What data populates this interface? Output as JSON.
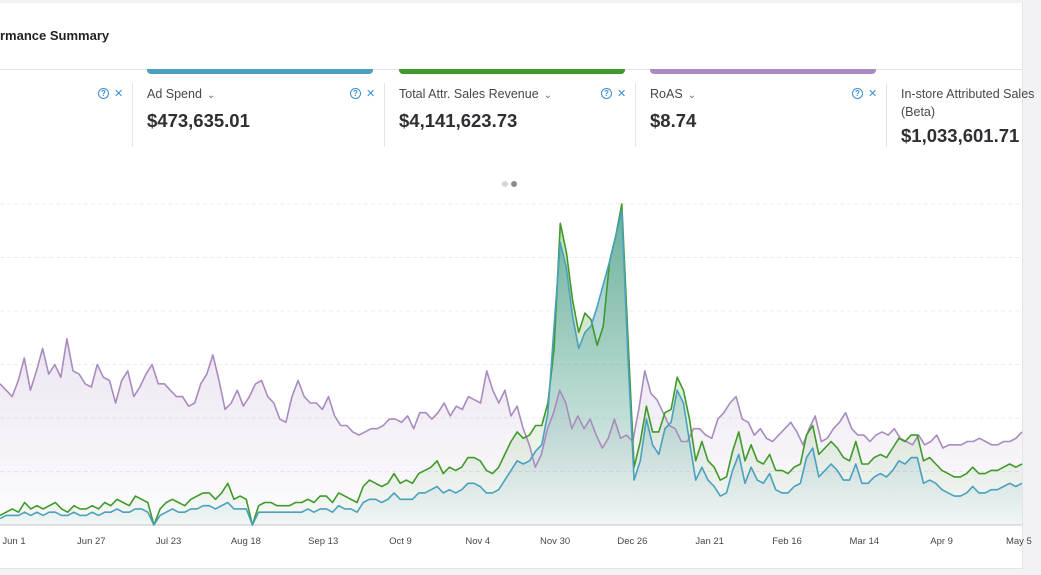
{
  "header": {
    "title": "rmance Summary"
  },
  "colors": {
    "teal": "#4aa0bd",
    "green": "#3f9a2a",
    "purple": "#a98bbf",
    "accent_blue": "#3a8fd6",
    "dot_inactive": "#d5d6da",
    "dot_active": "#8a8b90"
  },
  "metrics": [
    {
      "label": "",
      "value": "",
      "accent": "",
      "help": "?",
      "close": "✕"
    },
    {
      "label": "Ad Spend",
      "value": "$473,635.01",
      "accent": "#4aa0bd",
      "help": "?",
      "close": "✕"
    },
    {
      "label": "Total Attr. Sales Revenue",
      "value": "$4,141,623.73",
      "accent": "#3f9a2a",
      "help": "?",
      "close": "✕"
    },
    {
      "label": "RoAS",
      "value": "$8.74",
      "accent": "#a98bbf",
      "help": "?",
      "close": "✕"
    },
    {
      "label": "In-store Attributed Sales (Beta)",
      "value": "$1,033,601.71"
    }
  ],
  "chevron": "⌄",
  "pagination": {
    "total": 2,
    "active_index": 1
  },
  "chart_data": {
    "type": "area",
    "x_tick_labels": [
      "Jun 1",
      "Jun 27",
      "Jul 23",
      "Aug 18",
      "Sep 13",
      "Oct 9",
      "Nov 4",
      "Nov 30",
      "Dec 26",
      "Jan 21",
      "Feb 16",
      "Mar 14",
      "Apr 9",
      "May 5"
    ],
    "series": [
      {
        "name": "RoAS",
        "color": "#a98bbf",
        "values": [
          0.44,
          0.42,
          0.4,
          0.45,
          0.52,
          0.42,
          0.48,
          0.55,
          0.47,
          0.5,
          0.46,
          0.58,
          0.48,
          0.47,
          0.44,
          0.43,
          0.5,
          0.46,
          0.45,
          0.38,
          0.45,
          0.48,
          0.4,
          0.43,
          0.47,
          0.5,
          0.44,
          0.44,
          0.42,
          0.4,
          0.4,
          0.37,
          0.38,
          0.44,
          0.47,
          0.53,
          0.45,
          0.36,
          0.38,
          0.42,
          0.37,
          0.4,
          0.44,
          0.45,
          0.4,
          0.38,
          0.33,
          0.32,
          0.4,
          0.45,
          0.4,
          0.38,
          0.38,
          0.36,
          0.4,
          0.34,
          0.31,
          0.31,
          0.29,
          0.28,
          0.29,
          0.3,
          0.3,
          0.31,
          0.33,
          0.33,
          0.32,
          0.34,
          0.3,
          0.35,
          0.35,
          0.33,
          0.35,
          0.38,
          0.34,
          0.37,
          0.36,
          0.4,
          0.39,
          0.38,
          0.48,
          0.42,
          0.38,
          0.42,
          0.34,
          0.37,
          0.3,
          0.25,
          0.18,
          0.22,
          0.3,
          0.35,
          0.42,
          0.38,
          0.3,
          0.34,
          0.3,
          0.33,
          0.28,
          0.24,
          0.27,
          0.33,
          0.27,
          0.28,
          0.26,
          0.36,
          0.48,
          0.41,
          0.39,
          0.35,
          0.31,
          0.3,
          0.26,
          0.26,
          0.3,
          0.3,
          0.28,
          0.27,
          0.33,
          0.35,
          0.38,
          0.4,
          0.33,
          0.32,
          0.28,
          0.3,
          0.27,
          0.26,
          0.28,
          0.3,
          0.32,
          0.29,
          0.25,
          0.3,
          0.34,
          0.26,
          0.27,
          0.3,
          0.32,
          0.35,
          0.3,
          0.28,
          0.28,
          0.26,
          0.28,
          0.29,
          0.28,
          0.3,
          0.27,
          0.26,
          0.25,
          0.28,
          0.25,
          0.26,
          0.28,
          0.24,
          0.25,
          0.25,
          0.25,
          0.26,
          0.26,
          0.27,
          0.26,
          0.25,
          0.25,
          0.26,
          0.26,
          0.27,
          0.29
        ]
      },
      {
        "name": "Total Attr. Sales Revenue",
        "color": "#3f9a2a",
        "values": [
          0.03,
          0.04,
          0.05,
          0.04,
          0.07,
          0.05,
          0.06,
          0.05,
          0.06,
          0.07,
          0.05,
          0.04,
          0.06,
          0.05,
          0.05,
          0.06,
          0.05,
          0.07,
          0.06,
          0.08,
          0.07,
          0.06,
          0.09,
          0.08,
          0.07,
          0.0,
          0.05,
          0.07,
          0.08,
          0.07,
          0.06,
          0.08,
          0.09,
          0.1,
          0.1,
          0.08,
          0.1,
          0.13,
          0.08,
          0.09,
          0.08,
          0.0,
          0.06,
          0.07,
          0.07,
          0.06,
          0.06,
          0.06,
          0.07,
          0.07,
          0.08,
          0.07,
          0.09,
          0.09,
          0.07,
          0.1,
          0.09,
          0.08,
          0.07,
          0.12,
          0.14,
          0.13,
          0.12,
          0.13,
          0.16,
          0.13,
          0.14,
          0.13,
          0.16,
          0.17,
          0.18,
          0.2,
          0.16,
          0.18,
          0.17,
          0.18,
          0.21,
          0.21,
          0.2,
          0.17,
          0.16,
          0.18,
          0.22,
          0.26,
          0.29,
          0.27,
          0.28,
          0.31,
          0.31,
          0.38,
          0.55,
          0.94,
          0.85,
          0.7,
          0.6,
          0.66,
          0.64,
          0.56,
          0.62,
          0.82,
          0.9,
          1.0,
          0.58,
          0.18,
          0.26,
          0.37,
          0.29,
          0.29,
          0.35,
          0.36,
          0.46,
          0.42,
          0.33,
          0.2,
          0.26,
          0.2,
          0.18,
          0.14,
          0.15,
          0.23,
          0.29,
          0.2,
          0.25,
          0.2,
          0.19,
          0.22,
          0.17,
          0.17,
          0.16,
          0.18,
          0.19,
          0.28,
          0.31,
          0.22,
          0.24,
          0.26,
          0.24,
          0.21,
          0.2,
          0.26,
          0.19,
          0.19,
          0.21,
          0.22,
          0.21,
          0.24,
          0.27,
          0.26,
          0.28,
          0.28,
          0.2,
          0.21,
          0.19,
          0.17,
          0.16,
          0.15,
          0.15,
          0.16,
          0.18,
          0.16,
          0.16,
          0.17,
          0.17,
          0.18,
          0.19,
          0.18,
          0.19
        ]
      },
      {
        "name": "Ad Spend",
        "color": "#4aa0bd",
        "values": [
          0.02,
          0.03,
          0.03,
          0.03,
          0.04,
          0.03,
          0.04,
          0.03,
          0.04,
          0.04,
          0.03,
          0.03,
          0.04,
          0.03,
          0.03,
          0.04,
          0.03,
          0.04,
          0.04,
          0.05,
          0.04,
          0.04,
          0.05,
          0.05,
          0.04,
          0.0,
          0.03,
          0.04,
          0.05,
          0.04,
          0.04,
          0.05,
          0.05,
          0.06,
          0.06,
          0.05,
          0.06,
          0.07,
          0.05,
          0.05,
          0.05,
          0.0,
          0.04,
          0.04,
          0.04,
          0.04,
          0.04,
          0.04,
          0.04,
          0.04,
          0.05,
          0.04,
          0.05,
          0.05,
          0.04,
          0.06,
          0.05,
          0.05,
          0.04,
          0.07,
          0.08,
          0.08,
          0.07,
          0.08,
          0.1,
          0.08,
          0.08,
          0.08,
          0.1,
          0.1,
          0.11,
          0.12,
          0.1,
          0.11,
          0.1,
          0.11,
          0.13,
          0.13,
          0.12,
          0.1,
          0.1,
          0.11,
          0.14,
          0.17,
          0.2,
          0.19,
          0.2,
          0.23,
          0.25,
          0.35,
          0.62,
          0.88,
          0.8,
          0.65,
          0.55,
          0.6,
          0.62,
          0.68,
          0.75,
          0.82,
          0.9,
          0.98,
          0.52,
          0.14,
          0.2,
          0.33,
          0.25,
          0.22,
          0.3,
          0.32,
          0.42,
          0.38,
          0.26,
          0.14,
          0.18,
          0.14,
          0.12,
          0.09,
          0.1,
          0.17,
          0.22,
          0.13,
          0.18,
          0.14,
          0.13,
          0.16,
          0.11,
          0.1,
          0.1,
          0.12,
          0.13,
          0.21,
          0.24,
          0.15,
          0.17,
          0.19,
          0.17,
          0.14,
          0.14,
          0.19,
          0.13,
          0.13,
          0.15,
          0.16,
          0.15,
          0.17,
          0.2,
          0.19,
          0.21,
          0.21,
          0.13,
          0.14,
          0.13,
          0.11,
          0.1,
          0.09,
          0.09,
          0.1,
          0.12,
          0.1,
          0.1,
          0.11,
          0.11,
          0.12,
          0.13,
          0.12,
          0.13
        ]
      }
    ],
    "ylim": [
      0,
      1
    ],
    "grid": true,
    "legend": "none"
  }
}
